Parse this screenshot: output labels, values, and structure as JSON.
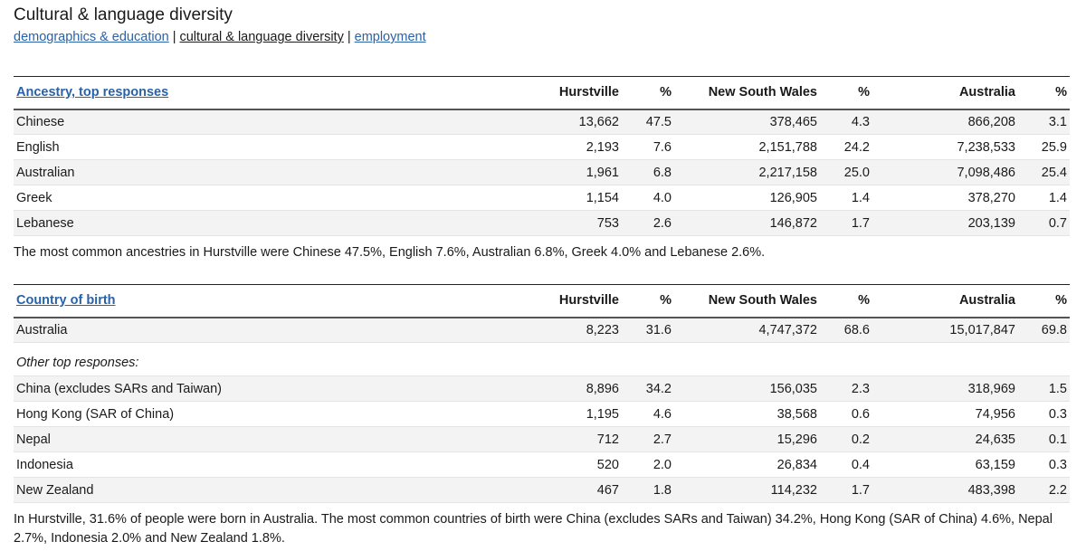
{
  "page": {
    "title": "Cultural & language diversity"
  },
  "subnav": {
    "items": [
      {
        "label": "demographics & education"
      },
      {
        "label": "cultural & language diversity"
      },
      {
        "label": "employment"
      }
    ],
    "separator": "|"
  },
  "ancestry": {
    "headers": {
      "label": "Ancestry, top responses",
      "hurstville": "Hurstville",
      "hurstville_pct": "%",
      "nsw": "New South Wales",
      "nsw_pct": "%",
      "australia": "Australia",
      "australia_pct": "%"
    },
    "rows": [
      {
        "label": "Chinese",
        "hurstville": "13,662",
        "hurstville_pct": "47.5",
        "nsw": "378,465",
        "nsw_pct": "4.3",
        "australia": "866,208",
        "australia_pct": "3.1"
      },
      {
        "label": "English",
        "hurstville": "2,193",
        "hurstville_pct": "7.6",
        "nsw": "2,151,788",
        "nsw_pct": "24.2",
        "australia": "7,238,533",
        "australia_pct": "25.9"
      },
      {
        "label": "Australian",
        "hurstville": "1,961",
        "hurstville_pct": "6.8",
        "nsw": "2,217,158",
        "nsw_pct": "25.0",
        "australia": "7,098,486",
        "australia_pct": "25.4"
      },
      {
        "label": "Greek",
        "hurstville": "1,154",
        "hurstville_pct": "4.0",
        "nsw": "126,905",
        "nsw_pct": "1.4",
        "australia": "378,270",
        "australia_pct": "1.4"
      },
      {
        "label": "Lebanese",
        "hurstville": "753",
        "hurstville_pct": "2.6",
        "nsw": "146,872",
        "nsw_pct": "1.7",
        "australia": "203,139",
        "australia_pct": "0.7"
      }
    ],
    "summary": "The most common ancestries in Hurstville were Chinese 47.5%, English 7.6%, Australian 6.8%, Greek 4.0% and Lebanese 2.6%."
  },
  "country_of_birth": {
    "headers": {
      "label": "Country of birth",
      "hurstville": "Hurstville",
      "hurstville_pct": "%",
      "nsw": "New South Wales",
      "nsw_pct": "%",
      "australia": "Australia",
      "australia_pct": "%"
    },
    "main_rows": [
      {
        "label": "Australia",
        "hurstville": "8,223",
        "hurstville_pct": "31.6",
        "nsw": "4,747,372",
        "nsw_pct": "68.6",
        "australia": "15,017,847",
        "australia_pct": "69.8"
      }
    ],
    "other_label": "Other top responses:",
    "other_rows": [
      {
        "label": "China (excludes SARs and Taiwan)",
        "hurstville": "8,896",
        "hurstville_pct": "34.2",
        "nsw": "156,035",
        "nsw_pct": "2.3",
        "australia": "318,969",
        "australia_pct": "1.5"
      },
      {
        "label": "Hong Kong (SAR of China)",
        "hurstville": "1,195",
        "hurstville_pct": "4.6",
        "nsw": "38,568",
        "nsw_pct": "0.6",
        "australia": "74,956",
        "australia_pct": "0.3"
      },
      {
        "label": "Nepal",
        "hurstville": "712",
        "hurstville_pct": "2.7",
        "nsw": "15,296",
        "nsw_pct": "0.2",
        "australia": "24,635",
        "australia_pct": "0.1"
      },
      {
        "label": "Indonesia",
        "hurstville": "520",
        "hurstville_pct": "2.0",
        "nsw": "26,834",
        "nsw_pct": "0.4",
        "australia": "63,159",
        "australia_pct": "0.3"
      },
      {
        "label": "New Zealand",
        "hurstville": "467",
        "hurstville_pct": "1.8",
        "nsw": "114,232",
        "nsw_pct": "1.7",
        "australia": "483,398",
        "australia_pct": "2.2"
      }
    ],
    "summary": "In Hurstville, 31.6% of people were born in Australia. The most common countries of birth were China (excludes SARs and Taiwan) 34.2%, Hong Kong (SAR of China) 4.6%, Nepal 2.7%, Indonesia 2.0% and New Zealand 1.8%."
  },
  "colors": {
    "link": "#2a62a8",
    "text": "#1a1a1a",
    "row_alt": "#f3f3f3"
  }
}
